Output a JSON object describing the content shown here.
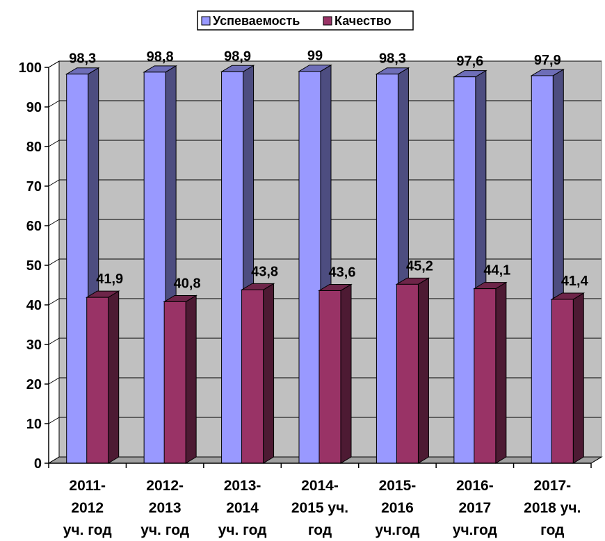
{
  "chart_data": {
    "type": "bar",
    "title": "",
    "xlabel": "",
    "ylabel": "",
    "ylim": [
      0,
      100
    ],
    "yticks": [
      0,
      10,
      20,
      30,
      40,
      50,
      60,
      70,
      80,
      90,
      100
    ],
    "grid": true,
    "legend_position": "top",
    "categories": [
      [
        "2011-",
        "2012",
        "уч. год"
      ],
      [
        "2012-",
        "2013",
        "уч. год"
      ],
      [
        "2013-",
        "2014",
        "уч. год"
      ],
      [
        "2014-",
        "2015 уч.",
        "год"
      ],
      [
        "2015-",
        "2016",
        "уч.год"
      ],
      [
        "2016-",
        "2017",
        "уч.год"
      ],
      [
        "2017-",
        "2018 уч.",
        "год"
      ]
    ],
    "series": [
      {
        "name": "Успеваемость",
        "color": "#9999ff",
        "values": [
          98.3,
          98.8,
          98.9,
          99,
          98.3,
          97.6,
          97.9
        ],
        "labels": [
          "98,3",
          "98,8",
          "98,9",
          "99",
          "98,3",
          "97,6",
          "97,9"
        ]
      },
      {
        "name": "Качество",
        "color": "#993366",
        "values": [
          41.9,
          40.8,
          43.8,
          43.6,
          45.2,
          44.1,
          41.4
        ],
        "labels": [
          "41,9",
          "40,8",
          "43,8",
          "43,6",
          "45,2",
          "44,1",
          "41,4"
        ]
      }
    ]
  }
}
